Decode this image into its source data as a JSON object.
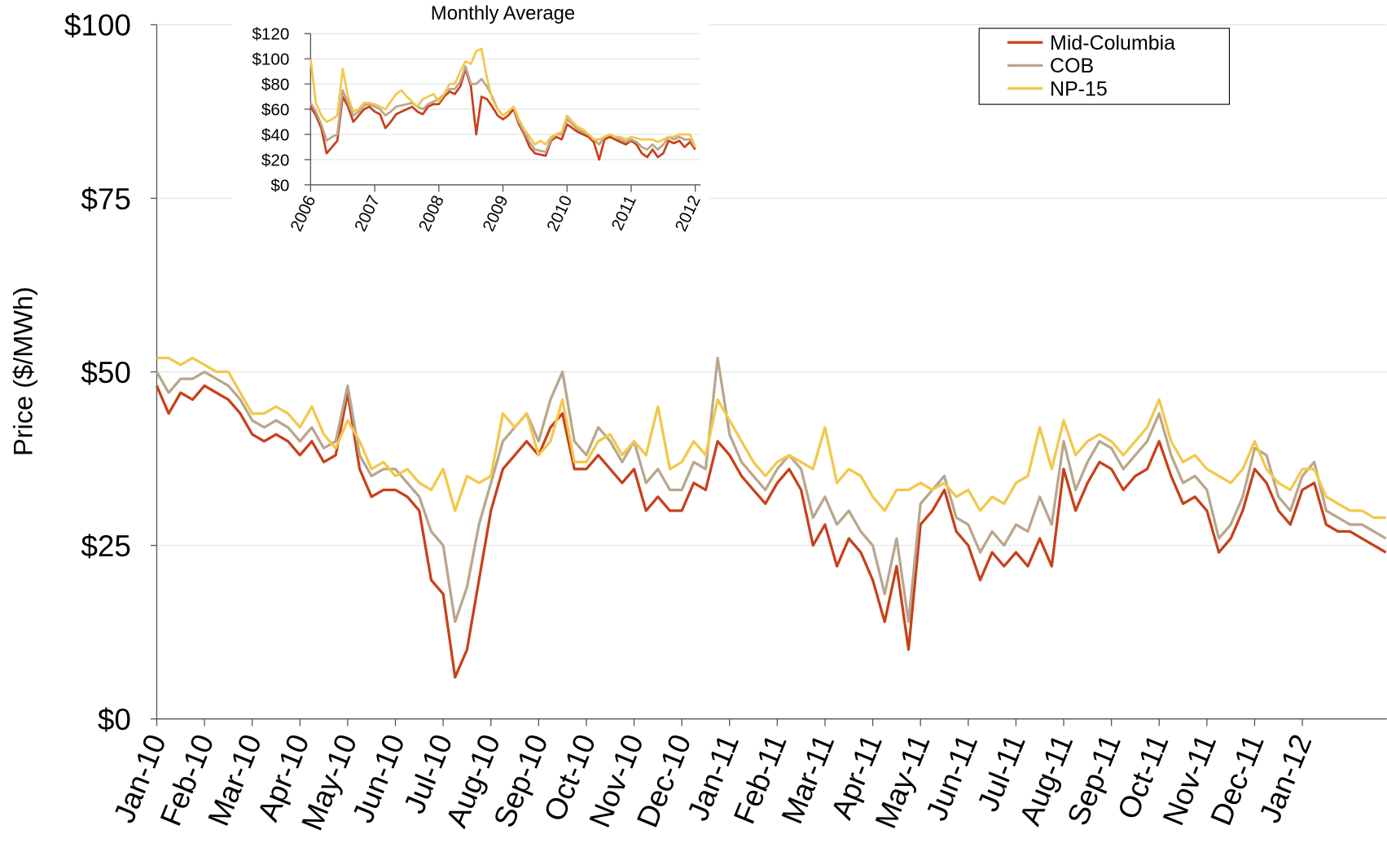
{
  "chart_data": [
    {
      "type": "line",
      "y_label": "Price ($/MWh)",
      "legend": "top-right",
      "grid": true,
      "ylim": [
        0,
        100
      ],
      "yticks": [
        {
          "value": 0,
          "label": "$0"
        },
        {
          "value": 25,
          "label": "$25"
        },
        {
          "value": 50,
          "label": "$50"
        },
        {
          "value": 75,
          "label": "$75"
        },
        {
          "value": 100,
          "label": "$100"
        }
      ],
      "categories": [
        "Jan-10",
        null,
        null,
        null,
        "Feb-10",
        null,
        null,
        null,
        "Mar-10",
        null,
        null,
        null,
        "Apr-10",
        null,
        null,
        null,
        "May-10",
        null,
        null,
        null,
        "Jun-10",
        null,
        null,
        null,
        "Jul-10",
        null,
        null,
        null,
        "Aug-10",
        null,
        null,
        null,
        "Sep-10",
        null,
        null,
        null,
        "Oct-10",
        null,
        null,
        null,
        "Nov-10",
        null,
        null,
        null,
        "Dec-10",
        null,
        null,
        null,
        "Jan-11",
        null,
        null,
        null,
        "Feb-11",
        null,
        null,
        null,
        "Mar-11",
        null,
        null,
        null,
        "Apr-11",
        null,
        null,
        null,
        "May-11",
        null,
        null,
        null,
        "Jun-11",
        null,
        null,
        null,
        "Jul-11",
        null,
        null,
        null,
        "Aug-11",
        null,
        null,
        null,
        "Sep-11",
        null,
        null,
        null,
        "Oct-11",
        null,
        null,
        null,
        "Nov-11",
        null,
        null,
        null,
        "Dec-11",
        null,
        null,
        null,
        "Jan-12",
        null,
        null,
        null,
        null,
        null,
        null,
        null
      ],
      "series": [
        {
          "name": "Mid-Columbia",
          "color": "#c8401a",
          "values": [
            48,
            44,
            47,
            46,
            48,
            47,
            46,
            44,
            41,
            40,
            41,
            40,
            38,
            40,
            37,
            38,
            47,
            36,
            32,
            33,
            33,
            32,
            30,
            20,
            18,
            6,
            10,
            20,
            30,
            36,
            38,
            40,
            38,
            42,
            44,
            36,
            36,
            38,
            36,
            34,
            36,
            30,
            32,
            30,
            30,
            34,
            33,
            40,
            38,
            35,
            33,
            31,
            34,
            36,
            33,
            25,
            28,
            22,
            26,
            24,
            20,
            14,
            22,
            10,
            28,
            30,
            33,
            27,
            25,
            20,
            24,
            22,
            24,
            22,
            26,
            22,
            36,
            30,
            34,
            37,
            36,
            33,
            35,
            36,
            40,
            35,
            31,
            32,
            30,
            24,
            26,
            30,
            36,
            34,
            30,
            28,
            33,
            34,
            28,
            27,
            27,
            26,
            25,
            24
          ]
        },
        {
          "name": "COB",
          "color": "#b9a68c",
          "values": [
            50,
            47,
            49,
            49,
            50,
            49,
            48,
            46,
            43,
            42,
            43,
            42,
            40,
            42,
            39,
            40,
            48,
            38,
            35,
            36,
            36,
            34,
            32,
            27,
            25,
            14,
            19,
            28,
            34,
            40,
            42,
            44,
            40,
            46,
            50,
            40,
            38,
            42,
            40,
            37,
            40,
            34,
            36,
            33,
            33,
            37,
            36,
            52,
            41,
            37,
            35,
            33,
            36,
            38,
            36,
            29,
            32,
            28,
            30,
            27,
            25,
            18,
            26,
            14,
            31,
            33,
            35,
            29,
            28,
            24,
            27,
            25,
            28,
            27,
            32,
            28,
            40,
            33,
            37,
            40,
            39,
            36,
            38,
            40,
            44,
            38,
            34,
            35,
            33,
            26,
            28,
            32,
            39,
            38,
            32,
            30,
            35,
            37,
            30,
            29,
            28,
            28,
            27,
            26
          ]
        },
        {
          "name": "NP-15",
          "color": "#f3c74b",
          "values": [
            52,
            52,
            51,
            52,
            51,
            50,
            50,
            47,
            44,
            44,
            45,
            44,
            42,
            45,
            41,
            39,
            43,
            40,
            36,
            37,
            35,
            36,
            34,
            33,
            36,
            30,
            35,
            34,
            35,
            44,
            42,
            44,
            38,
            40,
            46,
            37,
            37,
            40,
            41,
            38,
            40,
            38,
            45,
            36,
            37,
            40,
            38,
            46,
            43,
            40,
            37,
            35,
            37,
            38,
            37,
            36,
            42,
            34,
            36,
            35,
            32,
            30,
            33,
            33,
            34,
            33,
            34,
            32,
            33,
            30,
            32,
            31,
            34,
            35,
            42,
            36,
            43,
            38,
            40,
            41,
            40,
            38,
            40,
            42,
            46,
            40,
            37,
            38,
            36,
            35,
            34,
            36,
            40,
            36,
            34,
            33,
            36,
            36,
            32,
            31,
            30,
            30,
            29,
            29
          ]
        }
      ]
    },
    {
      "type": "line",
      "title": "Monthly Average",
      "grid": true,
      "ylim": [
        0,
        120
      ],
      "yticks": [
        {
          "value": 0,
          "label": "$0"
        },
        {
          "value": 20,
          "label": "$20"
        },
        {
          "value": 40,
          "label": "$40"
        },
        {
          "value": 60,
          "label": "$60"
        },
        {
          "value": 80,
          "label": "$80"
        },
        {
          "value": 100,
          "label": "$100"
        },
        {
          "value": 120,
          "label": "$120"
        }
      ],
      "categories": [
        "2006",
        null,
        null,
        null,
        null,
        null,
        null,
        null,
        null,
        null,
        null,
        null,
        "2007",
        null,
        null,
        null,
        null,
        null,
        null,
        null,
        null,
        null,
        null,
        null,
        "2008",
        null,
        null,
        null,
        null,
        null,
        null,
        null,
        null,
        null,
        null,
        null,
        "2009",
        null,
        null,
        null,
        null,
        null,
        null,
        null,
        null,
        null,
        null,
        null,
        "2010",
        null,
        null,
        null,
        null,
        null,
        null,
        null,
        null,
        null,
        null,
        null,
        "2011",
        null,
        null,
        null,
        null,
        null,
        null,
        null,
        null,
        null,
        null,
        null,
        "2012"
      ],
      "series": [
        {
          "color": "#c8401a",
          "values": [
            62,
            55,
            45,
            25,
            30,
            35,
            70,
            62,
            50,
            55,
            60,
            62,
            58,
            56,
            45,
            50,
            56,
            58,
            60,
            62,
            58,
            56,
            62,
            64,
            64,
            70,
            74,
            72,
            78,
            92,
            78,
            40,
            70,
            68,
            62,
            55,
            52,
            55,
            60,
            48,
            40,
            30,
            25,
            24,
            23,
            35,
            38,
            36,
            48,
            45,
            42,
            40,
            38,
            34,
            20,
            36,
            38,
            36,
            34,
            32,
            35,
            32,
            25,
            22,
            28,
            22,
            25,
            35,
            33,
            35,
            30,
            34,
            28
          ]
        },
        {
          "color": "#b9a68c",
          "values": [
            65,
            58,
            48,
            35,
            38,
            40,
            75,
            65,
            55,
            58,
            63,
            64,
            62,
            60,
            55,
            58,
            62,
            63,
            64,
            65,
            62,
            60,
            64,
            66,
            68,
            72,
            76,
            76,
            82,
            94,
            80,
            80,
            84,
            78,
            70,
            60,
            55,
            58,
            62,
            50,
            42,
            34,
            28,
            27,
            26,
            36,
            40,
            40,
            52,
            48,
            44,
            42,
            40,
            36,
            32,
            38,
            40,
            38,
            36,
            34,
            36,
            34,
            30,
            28,
            32,
            28,
            32,
            38,
            36,
            38,
            36,
            36,
            30
          ]
        },
        {
          "color": "#f3c74b",
          "values": [
            100,
            65,
            55,
            50,
            52,
            55,
            92,
            70,
            58,
            60,
            65,
            65,
            64,
            62,
            60,
            66,
            72,
            75,
            70,
            66,
            62,
            68,
            70,
            72,
            66,
            72,
            80,
            80,
            90,
            98,
            96,
            106,
            108,
            85,
            68,
            60,
            55,
            58,
            62,
            52,
            44,
            38,
            32,
            35,
            32,
            38,
            40,
            42,
            55,
            50,
            46,
            44,
            40,
            36,
            36,
            38,
            40,
            38,
            38,
            36,
            38,
            37,
            36,
            36,
            36,
            34,
            36,
            38,
            38,
            40,
            40,
            40,
            30
          ]
        }
      ]
    }
  ]
}
